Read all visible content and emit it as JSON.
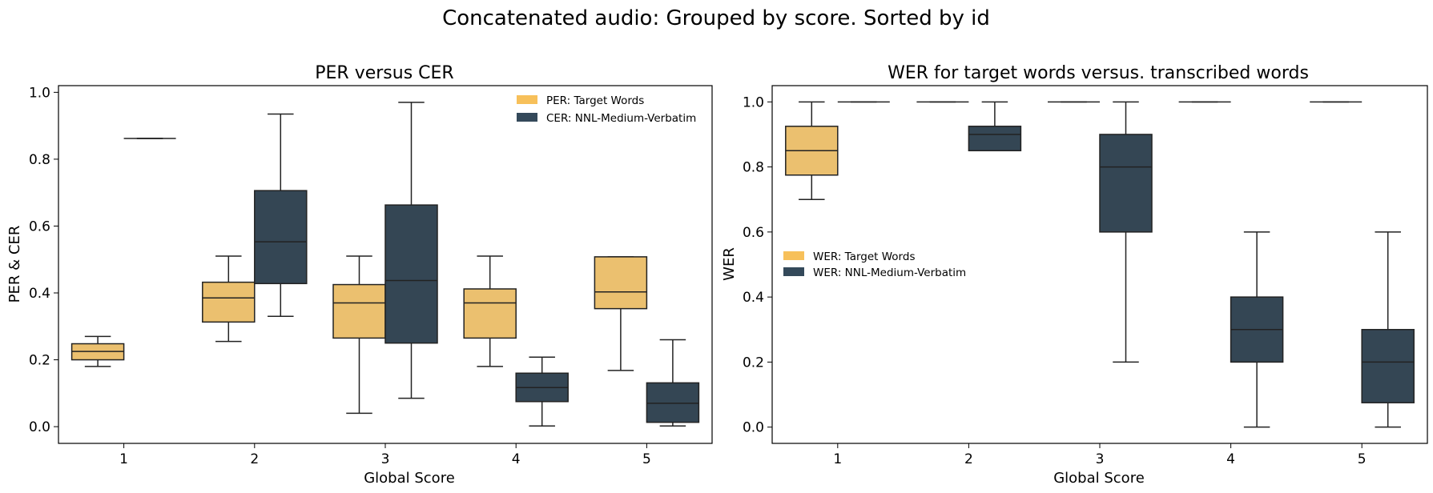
{
  "figure": {
    "suptitle": "Concatenated audio: Grouped by score. Sorted by id"
  },
  "colors": {
    "target": "#EBC06F",
    "nnl": "#344654",
    "legend_target": "#F7C05A",
    "legend_nnl": "#34495A",
    "edge": "#222222"
  },
  "chart_data": [
    {
      "type": "box",
      "title": "PER versus CER",
      "xlabel": "Global Score",
      "ylabel": "PER & CER",
      "categories": [
        "1",
        "2",
        "3",
        "4",
        "5"
      ],
      "ylim": [
        -0.05,
        1.02
      ],
      "yticks": [
        "0.0",
        "0.2",
        "0.4",
        "0.6",
        "0.8",
        "1.0"
      ],
      "legend_position": "upper right",
      "series": [
        {
          "name": "PER: Target Words",
          "boxes": [
            {
              "min": 0.18,
              "q1": 0.2,
              "median": 0.225,
              "q3": 0.248,
              "max": 0.27
            },
            {
              "min": 0.255,
              "q1": 0.313,
              "median": 0.385,
              "q3": 0.432,
              "max": 0.51
            },
            {
              "min": 0.04,
              "q1": 0.265,
              "median": 0.37,
              "q3": 0.425,
              "max": 0.51
            },
            {
              "min": 0.18,
              "q1": 0.265,
              "median": 0.37,
              "q3": 0.412,
              "max": 0.51
            },
            {
              "min": 0.168,
              "q1": 0.353,
              "median": 0.403,
              "q3": 0.508,
              "max": 0.508
            }
          ]
        },
        {
          "name": "CER: NNL-Medium-Verbatim",
          "boxes": [
            {
              "min": 0.862,
              "q1": 0.862,
              "median": 0.862,
              "q3": 0.862,
              "max": 0.862
            },
            {
              "min": 0.33,
              "q1": 0.428,
              "median": 0.553,
              "q3": 0.706,
              "max": 0.935
            },
            {
              "min": 0.085,
              "q1": 0.25,
              "median": 0.437,
              "q3": 0.663,
              "max": 0.97
            },
            {
              "min": 0.002,
              "q1": 0.075,
              "median": 0.117,
              "q3": 0.16,
              "max": 0.208
            },
            {
              "min": 0.002,
              "q1": 0.013,
              "median": 0.07,
              "q3": 0.131,
              "max": 0.26
            }
          ]
        }
      ]
    },
    {
      "type": "box",
      "title": "WER for target words versus. transcribed words",
      "xlabel": "Global Score",
      "ylabel": "WER",
      "categories": [
        "1",
        "2",
        "3",
        "4",
        "5"
      ],
      "ylim": [
        -0.05,
        1.05
      ],
      "yticks": [
        "0.0",
        "0.2",
        "0.4",
        "0.6",
        "0.8",
        "1.0"
      ],
      "legend_position": "center left",
      "series": [
        {
          "name": "WER: Target Words",
          "boxes": [
            {
              "min": 0.7,
              "q1": 0.775,
              "median": 0.85,
              "q3": 0.925,
              "max": 1.0
            },
            {
              "min": 1.0,
              "q1": 1.0,
              "median": 1.0,
              "q3": 1.0,
              "max": 1.0
            },
            {
              "min": 1.0,
              "q1": 1.0,
              "median": 1.0,
              "q3": 1.0,
              "max": 1.0
            },
            {
              "min": 1.0,
              "q1": 1.0,
              "median": 1.0,
              "q3": 1.0,
              "max": 1.0
            },
            {
              "min": 1.0,
              "q1": 1.0,
              "median": 1.0,
              "q3": 1.0,
              "max": 1.0
            }
          ]
        },
        {
          "name": "WER: NNL-Medium-Verbatim",
          "boxes": [
            {
              "min": 1.0,
              "q1": 1.0,
              "median": 1.0,
              "q3": 1.0,
              "max": 1.0
            },
            {
              "min": 0.85,
              "q1": 0.85,
              "median": 0.9,
              "q3": 0.925,
              "max": 1.0
            },
            {
              "min": 0.2,
              "q1": 0.6,
              "median": 0.8,
              "q3": 0.9,
              "max": 1.0
            },
            {
              "min": 0.0,
              "q1": 0.2,
              "median": 0.3,
              "q3": 0.4,
              "max": 0.6
            },
            {
              "min": 0.0,
              "q1": 0.075,
              "median": 0.2,
              "q3": 0.3,
              "max": 0.6
            }
          ]
        }
      ]
    }
  ]
}
